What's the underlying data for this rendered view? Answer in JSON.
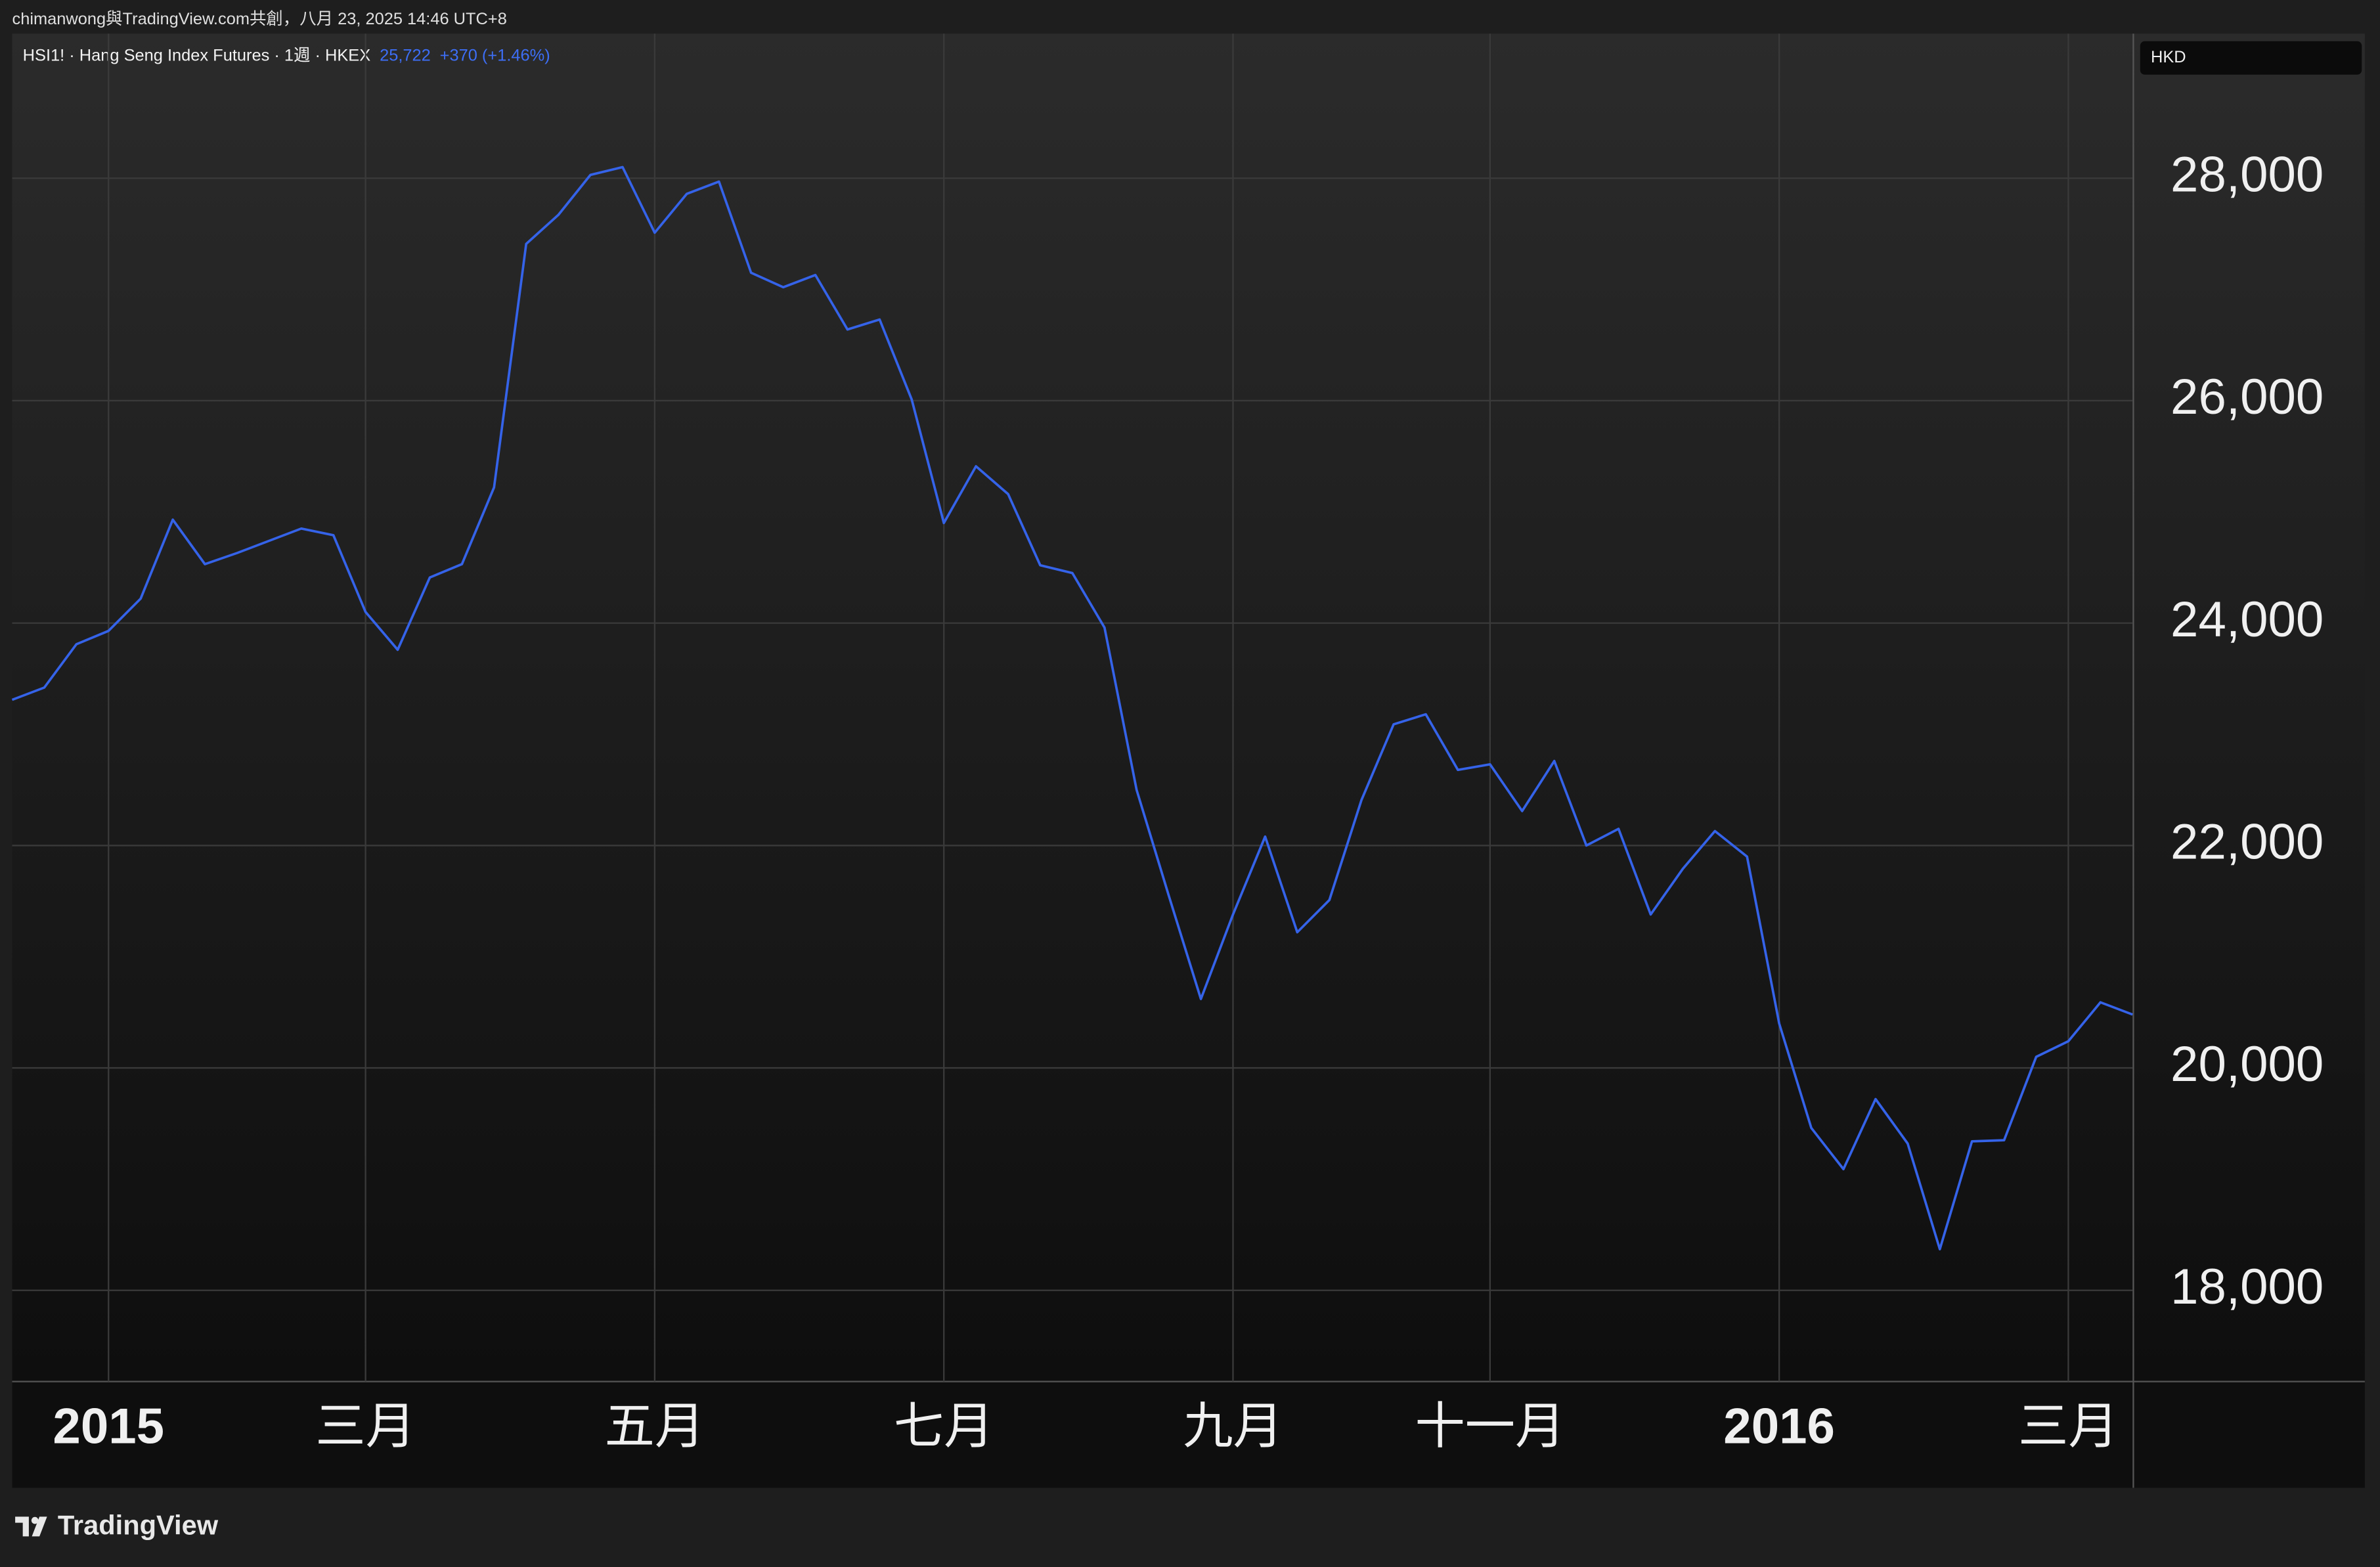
{
  "header": {
    "text": "chimanwong與TradingView.com共創，八月 23, 2025 14:46 UTC+8"
  },
  "chart_data": {
    "type": "line",
    "title": "HSI1! · Hang Seng Index Futures · 1週 · HKEX",
    "last_value": "25,722",
    "change": "+370 (+1.46%)",
    "currency": "HKD",
    "color": "#3563e9",
    "categories": [
      null,
      null,
      null,
      "2015",
      null,
      null,
      null,
      null,
      null,
      null,
      null,
      "三月",
      null,
      null,
      null,
      null,
      null,
      null,
      null,
      null,
      "五月",
      null,
      null,
      null,
      null,
      null,
      null,
      null,
      null,
      "七月",
      null,
      null,
      null,
      null,
      null,
      null,
      null,
      null,
      "九月",
      null,
      null,
      null,
      null,
      null,
      null,
      null,
      "十一月",
      null,
      null,
      null,
      null,
      null,
      null,
      null,
      null,
      "2016",
      null,
      null,
      null,
      null,
      null,
      null,
      null,
      null,
      "三月",
      null,
      null
    ],
    "values": [
      23310,
      23420,
      23810,
      23930,
      24220,
      24930,
      24530,
      24630,
      24740,
      24850,
      24790,
      24100,
      23760,
      24410,
      24530,
      25220,
      27410,
      27670,
      28030,
      28100,
      27510,
      27860,
      27970,
      27150,
      27020,
      27130,
      26640,
      26730,
      26010,
      24900,
      25410,
      25160,
      24520,
      24450,
      23960,
      22500,
      21550,
      20620,
      21380,
      22080,
      21220,
      21510,
      22410,
      23090,
      23180,
      22680,
      22730,
      22310,
      22760,
      22000,
      22150,
      21380,
      21790,
      22130,
      21900,
      20400,
      19460,
      19090,
      19720,
      19320,
      18370,
      19340,
      19350,
      20100,
      20240,
      20590,
      20480
    ],
    "ylim": [
      17180,
      29300
    ],
    "yticks": [
      {
        "value": 18000,
        "label": "18,000"
      },
      {
        "value": 20000,
        "label": "20,000"
      },
      {
        "value": 22000,
        "label": "22,000"
      },
      {
        "value": 24000,
        "label": "24,000"
      },
      {
        "value": 26000,
        "label": "26,000"
      },
      {
        "value": 28000,
        "label": "28,000"
      }
    ],
    "grid": true
  },
  "footer": {
    "logo": "TradingView"
  }
}
